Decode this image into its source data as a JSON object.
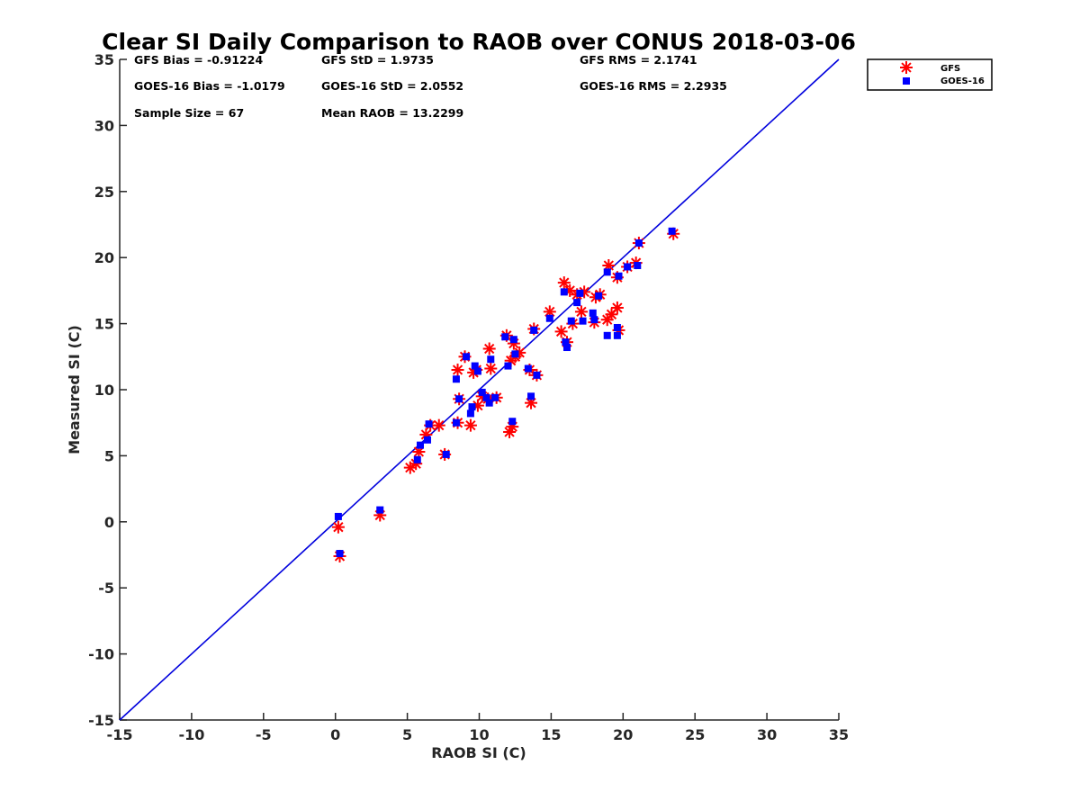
{
  "chart_data": {
    "type": "scatter",
    "title": "Clear SI Daily Comparison to RAOB over CONUS 2018-03-06",
    "xlabel": "RAOB SI (C)",
    "ylabel": "Measured SI (C)",
    "xlim": [
      -15,
      35
    ],
    "ylim": [
      -15,
      35
    ],
    "xticks": [
      "-15",
      "-10",
      "-5",
      "0",
      "5",
      "10",
      "15",
      "20",
      "25",
      "30",
      "35"
    ],
    "yticks": [
      "-15",
      "-10",
      "-5",
      "0",
      "5",
      "10",
      "15",
      "20",
      "25",
      "30",
      "35"
    ],
    "grid": false,
    "legend_position": "outside-top-right",
    "reference_line": {
      "x": [
        -15,
        35
      ],
      "y": [
        -15,
        35
      ],
      "color": "#0000dd"
    },
    "stats": [
      [
        "GFS Bias = -0.91224",
        "GFS StD = 1.9735",
        "GFS RMS = 2.1741"
      ],
      [
        "GOES-16 Bias = -1.0179",
        "GOES-16 StD = 2.0552",
        "GOES-16 RMS = 2.2935"
      ],
      [
        "Sample Size = 67",
        "Mean RAOB = 13.2299"
      ]
    ],
    "series": [
      {
        "name": "GFS",
        "marker": "asterisk",
        "color": "#ff0000",
        "points": [
          [
            0.2,
            -0.4
          ],
          [
            0.3,
            -2.6
          ],
          [
            3.1,
            0.5
          ],
          [
            5.2,
            4.1
          ],
          [
            5.6,
            4.4
          ],
          [
            5.8,
            5.3
          ],
          [
            6.3,
            6.6
          ],
          [
            6.6,
            7.3
          ],
          [
            7.2,
            7.3
          ],
          [
            7.6,
            5.1
          ],
          [
            8.5,
            7.5
          ],
          [
            8.5,
            11.5
          ],
          [
            8.6,
            9.3
          ],
          [
            9.0,
            12.5
          ],
          [
            9.4,
            7.3
          ],
          [
            9.6,
            11.3
          ],
          [
            9.8,
            11.5
          ],
          [
            9.9,
            8.8
          ],
          [
            10.2,
            9.5
          ],
          [
            10.6,
            9.3
          ],
          [
            10.7,
            13.1
          ],
          [
            10.8,
            11.6
          ],
          [
            11.2,
            9.4
          ],
          [
            11.9,
            14.1
          ],
          [
            12.1,
            6.8
          ],
          [
            12.2,
            12.2
          ],
          [
            12.3,
            7.2
          ],
          [
            12.4,
            13.5
          ],
          [
            12.5,
            12.5
          ],
          [
            12.8,
            12.8
          ],
          [
            13.5,
            11.5
          ],
          [
            13.6,
            9.0
          ],
          [
            13.8,
            14.6
          ],
          [
            14.0,
            11.1
          ],
          [
            14.9,
            15.9
          ],
          [
            15.7,
            14.4
          ],
          [
            15.9,
            18.1
          ],
          [
            16.1,
            13.6
          ],
          [
            16.3,
            17.5
          ],
          [
            16.5,
            15.0
          ],
          [
            16.8,
            17.2
          ],
          [
            17.1,
            15.9
          ],
          [
            17.3,
            17.4
          ],
          [
            18.0,
            15.1
          ],
          [
            18.1,
            17.0
          ],
          [
            18.4,
            17.2
          ],
          [
            18.9,
            15.3
          ],
          [
            19.0,
            19.4
          ],
          [
            19.2,
            15.7
          ],
          [
            19.6,
            18.5
          ],
          [
            19.6,
            16.2
          ],
          [
            19.7,
            14.5
          ],
          [
            20.3,
            19.3
          ],
          [
            20.9,
            19.6
          ],
          [
            21.1,
            21.1
          ],
          [
            23.5,
            21.8
          ]
        ]
      },
      {
        "name": "GOES-16",
        "marker": "square",
        "color": "#0000ff",
        "points": [
          [
            0.2,
            0.4
          ],
          [
            0.3,
            -2.4
          ],
          [
            3.1,
            0.9
          ],
          [
            5.7,
            4.7
          ],
          [
            5.9,
            5.8
          ],
          [
            6.4,
            6.2
          ],
          [
            6.5,
            7.4
          ],
          [
            7.7,
            5.1
          ],
          [
            8.4,
            7.5
          ],
          [
            8.4,
            10.8
          ],
          [
            8.6,
            9.3
          ],
          [
            9.1,
            12.5
          ],
          [
            9.4,
            8.2
          ],
          [
            9.5,
            8.7
          ],
          [
            9.7,
            11.8
          ],
          [
            9.9,
            11.4
          ],
          [
            10.2,
            9.8
          ],
          [
            10.5,
            9.4
          ],
          [
            10.7,
            9.0
          ],
          [
            10.8,
            12.3
          ],
          [
            11.1,
            9.4
          ],
          [
            11.8,
            14.0
          ],
          [
            12.0,
            11.8
          ],
          [
            12.3,
            7.6
          ],
          [
            12.4,
            13.8
          ],
          [
            12.5,
            12.7
          ],
          [
            13.4,
            11.6
          ],
          [
            13.6,
            9.5
          ],
          [
            13.8,
            14.5
          ],
          [
            14.0,
            11.1
          ],
          [
            14.9,
            15.4
          ],
          [
            15.9,
            17.4
          ],
          [
            16.0,
            13.6
          ],
          [
            16.1,
            13.2
          ],
          [
            16.4,
            15.2
          ],
          [
            16.8,
            16.6
          ],
          [
            17.0,
            17.3
          ],
          [
            17.2,
            15.2
          ],
          [
            17.9,
            15.8
          ],
          [
            18.0,
            15.3
          ],
          [
            18.3,
            17.1
          ],
          [
            18.9,
            14.1
          ],
          [
            18.9,
            18.9
          ],
          [
            19.6,
            14.1
          ],
          [
            19.6,
            14.7
          ],
          [
            19.7,
            18.6
          ],
          [
            20.3,
            19.3
          ],
          [
            21.0,
            19.4
          ],
          [
            21.1,
            21.1
          ],
          [
            23.4,
            22.0
          ]
        ]
      }
    ]
  }
}
